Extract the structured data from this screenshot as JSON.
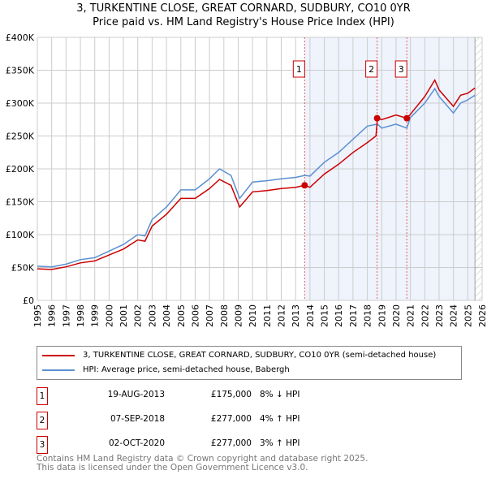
{
  "chart_data": {
    "type": "line",
    "title": "3, TURKENTINE CLOSE, GREAT CORNARD, SUDBURY, CO10 0YR",
    "subtitle": "Price paid vs. HM Land Registry's House Price Index (HPI)",
    "xlim": [
      1995,
      2026
    ],
    "ylim": [
      0,
      400000
    ],
    "yticks": [
      0,
      50000,
      100000,
      150000,
      200000,
      250000,
      300000,
      350000,
      400000
    ],
    "ytick_labels": [
      "£0",
      "£50K",
      "£100K",
      "£150K",
      "£200K",
      "£250K",
      "£300K",
      "£350K",
      "£400K"
    ],
    "xticks": [
      1995,
      1996,
      1997,
      1998,
      1999,
      2000,
      2001,
      2002,
      2003,
      2004,
      2005,
      2006,
      2007,
      2008,
      2009,
      2010,
      2011,
      2012,
      2013,
      2014,
      2015,
      2016,
      2017,
      2018,
      2019,
      2020,
      2021,
      2022,
      2023,
      2024,
      2025,
      2026
    ],
    "grid": true,
    "shaded_region": [
      2013.63,
      2025.45
    ],
    "hatched_after": 2025.5,
    "series": [
      {
        "name": "3, TURKENTINE CLOSE, GREAT CORNARD, SUDBURY, CO10 0YR (semi-detached house)",
        "color": "#cc0000",
        "x": [
          1995,
          1996,
          1997,
          1998,
          1999,
          2000,
          2001,
          2002,
          2002.5,
          2003,
          2004,
          2005,
          2006,
          2007,
          2007.7,
          2008.5,
          2009.1,
          2010,
          2011,
          2012,
          2013,
          2013.63,
          2014,
          2015,
          2016,
          2017,
          2018,
          2018.6,
          2018.7,
          2019,
          2020,
          2020.75,
          2021,
          2022,
          2022.7,
          2023,
          2024,
          2024.5,
          2025,
          2025.5
        ],
        "y": [
          48000,
          47000,
          51000,
          57000,
          60000,
          69000,
          78000,
          92000,
          90000,
          113000,
          131000,
          155000,
          155000,
          170000,
          184000,
          175000,
          142000,
          165000,
          167000,
          170000,
          172000,
          175000,
          172000,
          192000,
          207000,
          225000,
          240000,
          250000,
          277000,
          275000,
          282000,
          277000,
          283000,
          310000,
          335000,
          320000,
          295000,
          312000,
          315000,
          323000
        ]
      },
      {
        "name": "HPI: Average price, semi-detached house, Babergh",
        "color": "#5b8fd0",
        "x": [
          1995,
          1996,
          1997,
          1998,
          1999,
          2000,
          2001,
          2002,
          2002.5,
          2003,
          2004,
          2005,
          2006,
          2007,
          2007.7,
          2008.5,
          2009.1,
          2010,
          2011,
          2012,
          2013,
          2013.63,
          2014,
          2015,
          2016,
          2017,
          2018,
          2018.7,
          2019,
          2020,
          2020.75,
          2021,
          2022,
          2022.7,
          2023,
          2024,
          2024.5,
          2025,
          2025.5
        ],
        "y": [
          52000,
          51000,
          55000,
          62000,
          65000,
          75000,
          85000,
          100000,
          98000,
          123000,
          142000,
          168000,
          168000,
          185000,
          200000,
          190000,
          155000,
          180000,
          182000,
          185000,
          187000,
          190000,
          189000,
          210000,
          225000,
          245000,
          265000,
          268000,
          262000,
          268000,
          262000,
          278000,
          300000,
          322000,
          310000,
          285000,
          300000,
          305000,
          312000
        ]
      }
    ],
    "sales": [
      {
        "label": "1",
        "x": 2013.63,
        "y": 175000,
        "date": "19-AUG-2013",
        "price": "£175,000",
        "hpi": "8% ↓ HPI"
      },
      {
        "label": "2",
        "x": 2018.68,
        "y": 277000,
        "date": "07-SEP-2018",
        "price": "£277,000",
        "hpi": "4% ↑ HPI"
      },
      {
        "label": "3",
        "x": 2020.75,
        "y": 277000,
        "date": "02-OCT-2020",
        "price": "£277,000",
        "hpi": "3% ↑ HPI"
      }
    ]
  },
  "footer": {
    "line1": "Contains HM Land Registry data © Crown copyright and database right 2025.",
    "line2": "This data is licensed under the Open Government Licence v3.0."
  }
}
